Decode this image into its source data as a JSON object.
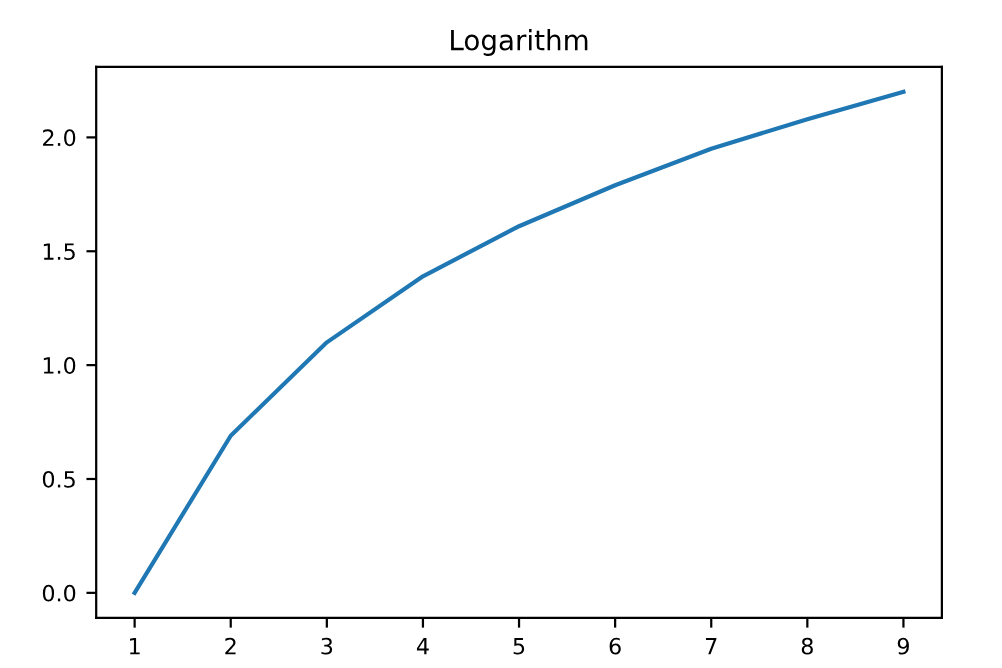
{
  "chart_data": {
    "type": "line",
    "title": "Logarithm",
    "x": [
      1,
      2,
      3,
      4,
      5,
      6,
      7,
      8,
      9
    ],
    "series": [
      {
        "color": "#1f77b4",
        "values": [
          0.0,
          0.69,
          1.1,
          1.39,
          1.61,
          1.79,
          1.95,
          2.08,
          2.2
        ]
      }
    ],
    "xlim": [
      0.6,
      9.4
    ],
    "xticks": [
      1,
      2,
      3,
      4,
      5,
      6,
      7,
      8,
      9
    ],
    "ylim": [
      -0.11,
      2.31
    ],
    "yticks": [
      {
        "value": 0,
        "label": "0.0"
      },
      {
        "value": 0.5,
        "label": "0.5"
      },
      {
        "value": 1,
        "label": "1.0"
      },
      {
        "value": 1.5,
        "label": "1.5"
      },
      {
        "value": 2,
        "label": "2.0"
      }
    ],
    "grid": false,
    "legend": false
  }
}
